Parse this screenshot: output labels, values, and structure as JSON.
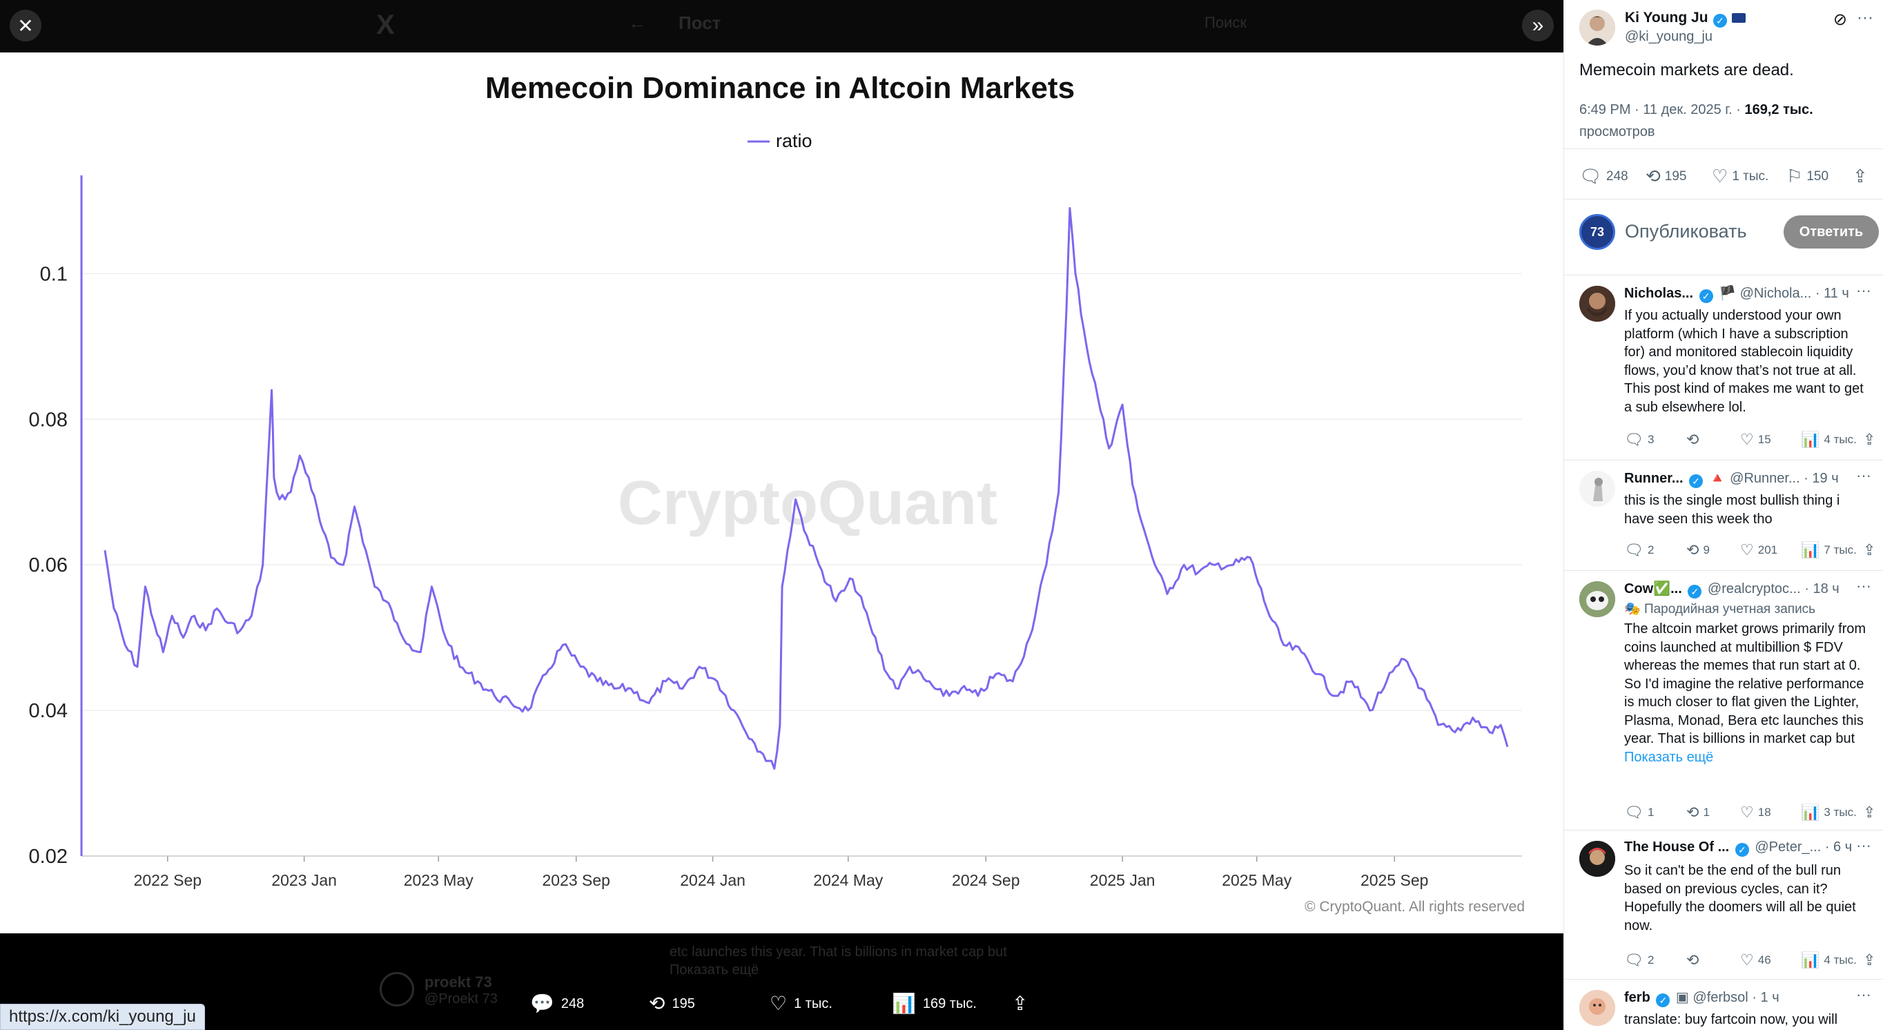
{
  "background": {
    "app_logo": "X",
    "page_title": "Пост",
    "search_placeholder": "Поиск",
    "reply_author": "proekt 73",
    "reply_handle": "@Proekt 73",
    "reply_text_line": "etc launches this year. That is billions in market cap but",
    "reply_show_more": "Показать ещё"
  },
  "viewer": {
    "close_icon": "close-icon",
    "expand_icon": "chevrons-right-icon",
    "url_tooltip": "https://x.com/ki_young_ju",
    "actions": {
      "replies": "248",
      "reposts": "195",
      "likes": "1 тыс.",
      "views": "169 тыс."
    }
  },
  "chart_data": {
    "type": "line",
    "title": "Memecoin Dominance in Altcoin Markets",
    "legend": [
      "ratio"
    ],
    "legend_position": "top-center",
    "watermark": "CryptoQuant",
    "copyright": "© CryptoQuant. All rights reserved",
    "x_tick_labels": [
      "2022 Sep",
      "2023 Jan",
      "2023 May",
      "2023 Sep",
      "2024 Jan",
      "2024 May",
      "2024 Sep",
      "2025 Jan",
      "2025 May",
      "2025 Sep"
    ],
    "y_tick_labels": [
      "0.02",
      "0.04",
      "0.06",
      "0.08",
      "0.1"
    ],
    "ylim": [
      0.02,
      0.1135
    ],
    "grid": true,
    "color": "#7b68ee",
    "series": [
      {
        "name": "ratio",
        "x": [
          "2022-07-07",
          "2022-07-15",
          "2022-07-25",
          "2022-08-05",
          "2022-08-12",
          "2022-08-20",
          "2022-08-28",
          "2022-09-05",
          "2022-09-15",
          "2022-09-25",
          "2022-10-05",
          "2022-10-15",
          "2022-10-25",
          "2022-11-05",
          "2022-11-15",
          "2022-11-25",
          "2022-12-01",
          "2022-12-03",
          "2022-12-05",
          "2022-12-10",
          "2022-12-20",
          "2022-12-28",
          "2023-01-05",
          "2023-01-15",
          "2023-01-25",
          "2023-02-05",
          "2023-02-15",
          "2023-02-25",
          "2023-03-05",
          "2023-03-15",
          "2023-03-25",
          "2023-04-05",
          "2023-04-15",
          "2023-04-25",
          "2023-05-05",
          "2023-05-20",
          "2023-06-05",
          "2023-06-20",
          "2023-07-05",
          "2023-07-20",
          "2023-08-05",
          "2023-08-20",
          "2023-09-05",
          "2023-09-20",
          "2023-10-05",
          "2023-10-20",
          "2023-11-05",
          "2023-11-20",
          "2023-12-05",
          "2023-12-20",
          "2024-01-05",
          "2024-01-20",
          "2024-02-05",
          "2024-02-15",
          "2024-02-25",
          "2024-03-01",
          "2024-03-03",
          "2024-03-15",
          "2024-03-25",
          "2024-04-05",
          "2024-04-20",
          "2024-05-05",
          "2024-05-20",
          "2024-06-05",
          "2024-06-15",
          "2024-06-25",
          "2024-07-10",
          "2024-07-25",
          "2024-08-10",
          "2024-08-25",
          "2024-09-10",
          "2024-09-25",
          "2024-10-10",
          "2024-10-25",
          "2024-11-05",
          "2024-11-12",
          "2024-11-15",
          "2024-11-20",
          "2024-11-30",
          "2024-12-10",
          "2024-12-20",
          "2025-01-01",
          "2025-01-10",
          "2025-01-20",
          "2025-01-30",
          "2025-02-10",
          "2025-02-25",
          "2025-03-10",
          "2025-03-25",
          "2025-04-10",
          "2025-04-25",
          "2025-05-10",
          "2025-05-25",
          "2025-06-10",
          "2025-06-25",
          "2025-07-10",
          "2025-07-25",
          "2025-08-10",
          "2025-08-25",
          "2025-09-10",
          "2025-09-25",
          "2025-10-10",
          "2025-10-25",
          "2025-11-10",
          "2025-11-25",
          "2025-12-05",
          "2025-12-11"
        ],
        "values": [
          0.062,
          0.054,
          0.049,
          0.046,
          0.057,
          0.052,
          0.048,
          0.053,
          0.05,
          0.053,
          0.051,
          0.054,
          0.052,
          0.051,
          0.053,
          0.06,
          0.078,
          0.084,
          0.072,
          0.069,
          0.07,
          0.075,
          0.072,
          0.066,
          0.061,
          0.06,
          0.068,
          0.062,
          0.057,
          0.055,
          0.052,
          0.049,
          0.048,
          0.057,
          0.051,
          0.046,
          0.044,
          0.042,
          0.041,
          0.04,
          0.045,
          0.049,
          0.046,
          0.044,
          0.043,
          0.043,
          0.041,
          0.044,
          0.043,
          0.046,
          0.044,
          0.04,
          0.036,
          0.034,
          0.032,
          0.038,
          0.057,
          0.069,
          0.064,
          0.06,
          0.055,
          0.058,
          0.052,
          0.045,
          0.043,
          0.046,
          0.044,
          0.042,
          0.043,
          0.042,
          0.045,
          0.044,
          0.05,
          0.06,
          0.07,
          0.095,
          0.109,
          0.1,
          0.09,
          0.083,
          0.076,
          0.082,
          0.071,
          0.065,
          0.06,
          0.056,
          0.06,
          0.059,
          0.06,
          0.06,
          0.061,
          0.054,
          0.049,
          0.048,
          0.045,
          0.042,
          0.044,
          0.04,
          0.044,
          0.047,
          0.043,
          0.038,
          0.037,
          0.039,
          0.037,
          0.038,
          0.035
        ]
      }
    ]
  },
  "sidebar": {
    "author": {
      "name": "Ki Young Ju",
      "handle": "@ki_young_ju"
    },
    "tweet_text": "Memecoin markets are dead.",
    "meta_time": "6:49 PM · 11 дек. 2025 г. · ",
    "meta_views": "169,2 тыс.",
    "meta_views_label": "просмотров",
    "stats": {
      "replies": "248",
      "reposts": "195",
      "likes": "1 тыс.",
      "bookmarks": "150"
    },
    "compose": {
      "avatar_text": "73",
      "placeholder": "Опубликовать",
      "reply_button": "Ответить"
    },
    "replies": [
      {
        "name": "Nicholas...",
        "handle": "@Nichola...",
        "time": "· 11 ч",
        "text": "If you actually understood your own platform (which I have a subscription for) and monitored stablecoin liquidity flows, you’d know that’s not true at all. This post kind of makes me want to get a sub elsewhere lol.",
        "replies": "3",
        "reposts": "",
        "likes": "15",
        "views": "4 тыс."
      },
      {
        "name": "Runner...",
        "handle": "@Runner...",
        "time": "· 19 ч",
        "text": "this is the single most bullish thing i have seen this week tho",
        "replies": "2",
        "reposts": "9",
        "likes": "201",
        "views": "7 тыс."
      },
      {
        "name": "Cow✅...",
        "handle": "@realcryptoc...",
        "time": "· 18 ч",
        "parody": "Пародийная учетная запись",
        "text": "The altcoin market grows primarily from coins launched at multibillion $ FDV whereas the memes that run start at 0. So I'd imagine the relative performance is much closer to flat given the Lighter, Plasma, Monad, Bera etc launches this year. That is billions in market cap but",
        "show_more": "Показать ещё",
        "replies": "1",
        "reposts": "1",
        "likes": "18",
        "views": "3 тыс."
      },
      {
        "name": "The House Of ...",
        "handle": "@Peter_...",
        "time": "· 6 ч",
        "text": "So it can't be the end of the bull run based on previous cycles, can it? Hopefully the doomers will all be quiet now.",
        "replies": "2",
        "reposts": "",
        "likes": "46",
        "views": "4 тыс."
      },
      {
        "name": "ferb",
        "handle": "@ferbsol",
        "time": "· 1 ч",
        "text": "translate: buy fartcoin now, you will"
      }
    ]
  }
}
